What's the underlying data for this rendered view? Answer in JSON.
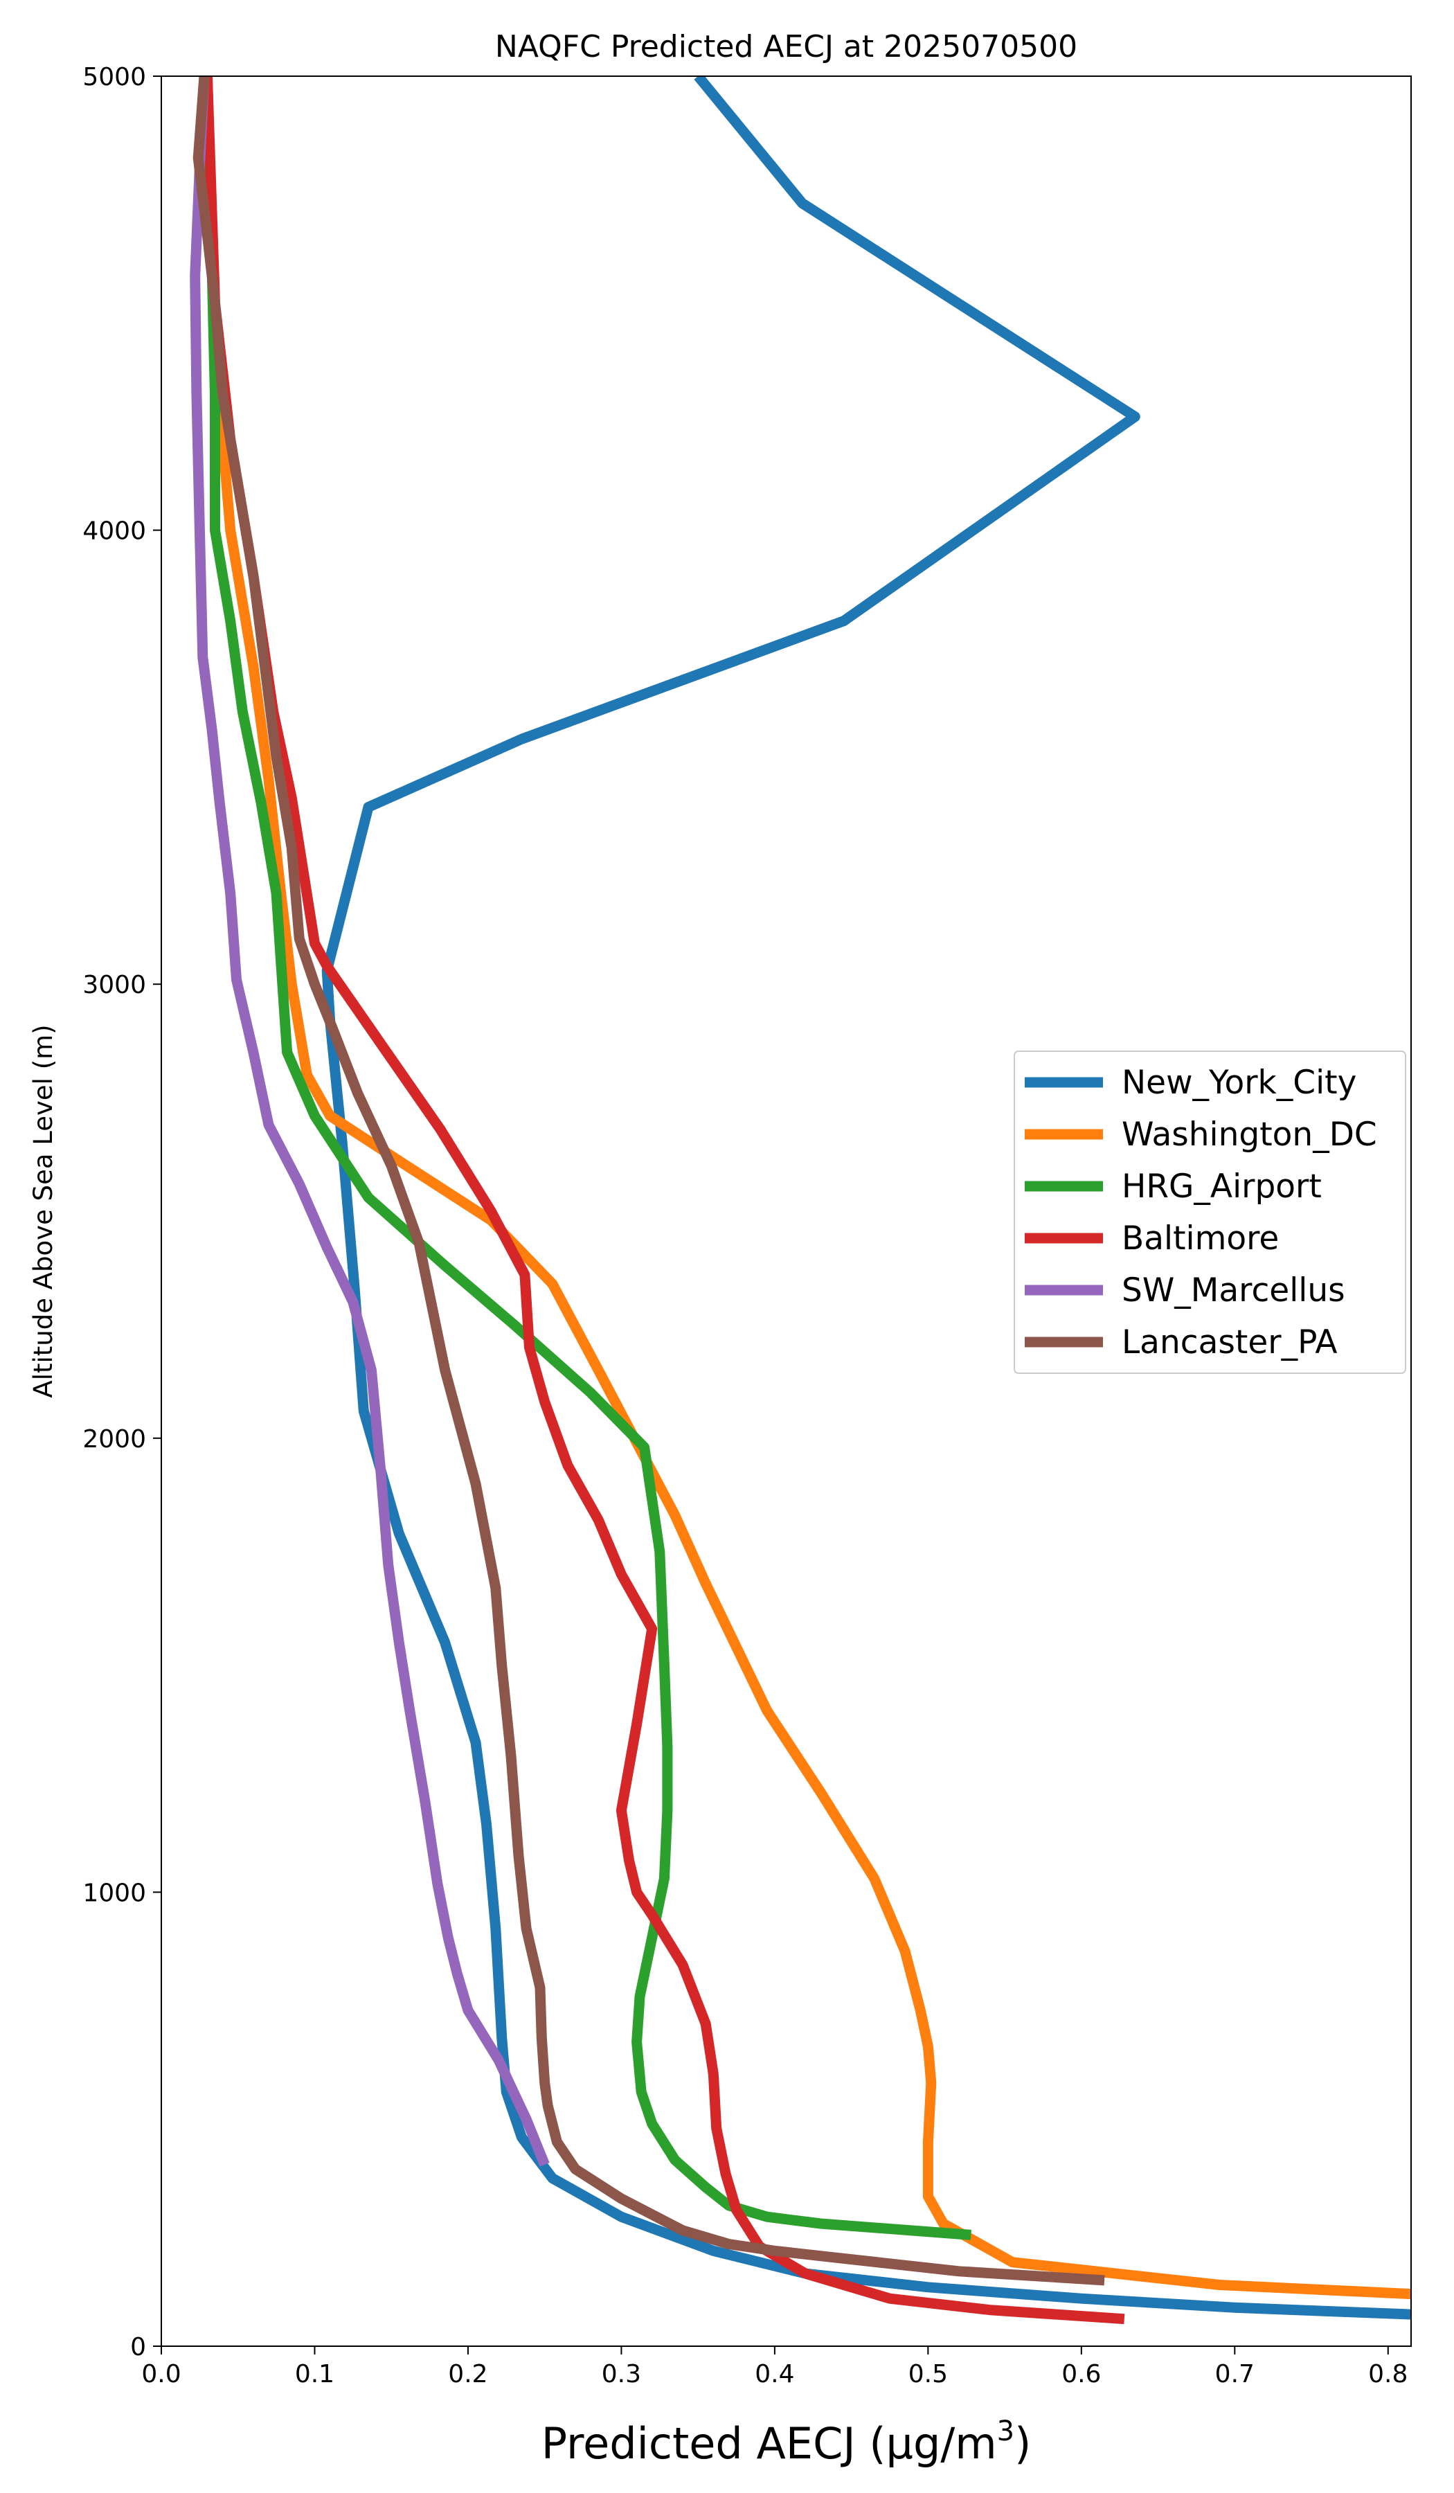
{
  "chart_data": {
    "type": "line",
    "title": "NAQFC Predicted AECJ at 2025070500",
    "xlabel": "Predicted AECJ (μg/m",
    "xlabel_sup": "3",
    "xlabel_close": ")",
    "ylabel": "Altitude Above Sea Level (m)",
    "xlim": [
      0,
      0.815
    ],
    "ylim": [
      0,
      5000
    ],
    "xticks": [
      0.0,
      0.1,
      0.2,
      0.3,
      0.4,
      0.5,
      0.6,
      0.7,
      0.8
    ],
    "xtick_labels": [
      "0.0",
      "0.1",
      "0.2",
      "0.3",
      "0.4",
      "0.5",
      "0.6",
      "0.7",
      "0.8"
    ],
    "yticks": [
      0,
      1000,
      2000,
      3000,
      4000,
      5000
    ],
    "ytick_labels": [
      "0",
      "1000",
      "2000",
      "3000",
      "4000",
      "5000"
    ],
    "grid": false,
    "legend_position": "center-right",
    "series": [
      {
        "name": "New_York_City",
        "color": "#1f77b4",
        "points": [
          [
            0.815,
            70
          ],
          [
            0.7,
            85
          ],
          [
            0.6,
            105
          ],
          [
            0.5,
            130
          ],
          [
            0.42,
            160
          ],
          [
            0.36,
            210
          ],
          [
            0.3,
            285
          ],
          [
            0.255,
            370
          ],
          [
            0.235,
            460
          ],
          [
            0.225,
            560
          ],
          [
            0.222,
            680
          ],
          [
            0.218,
            920
          ],
          [
            0.212,
            1150
          ],
          [
            0.205,
            1330
          ],
          [
            0.185,
            1550
          ],
          [
            0.155,
            1790
          ],
          [
            0.132,
            2060
          ],
          [
            0.126,
            2330
          ],
          [
            0.118,
            2650
          ],
          [
            0.11,
            2920
          ],
          [
            0.108,
            3030
          ],
          [
            0.135,
            3390
          ],
          [
            0.235,
            3540
          ],
          [
            0.445,
            3800
          ],
          [
            0.635,
            4250
          ],
          [
            0.418,
            4720
          ],
          [
            0.35,
            5000
          ]
        ]
      },
      {
        "name": "Washington_DC",
        "color": "#ff7f0e",
        "points": [
          [
            0.815,
            115
          ],
          [
            0.69,
            135
          ],
          [
            0.555,
            185
          ],
          [
            0.51,
            270
          ],
          [
            0.5,
            330
          ],
          [
            0.5,
            450
          ],
          [
            0.502,
            580
          ],
          [
            0.5,
            660
          ],
          [
            0.495,
            740
          ],
          [
            0.485,
            870
          ],
          [
            0.465,
            1030
          ],
          [
            0.43,
            1220
          ],
          [
            0.395,
            1400
          ],
          [
            0.375,
            1540
          ],
          [
            0.355,
            1680
          ],
          [
            0.335,
            1830
          ],
          [
            0.31,
            1990
          ],
          [
            0.285,
            2150
          ],
          [
            0.255,
            2340
          ],
          [
            0.215,
            2480
          ],
          [
            0.16,
            2600
          ],
          [
            0.11,
            2710
          ],
          [
            0.095,
            2800
          ],
          [
            0.085,
            3000
          ],
          [
            0.078,
            3200
          ],
          [
            0.07,
            3450
          ],
          [
            0.06,
            3700
          ],
          [
            0.045,
            4000
          ],
          [
            0.035,
            4400
          ],
          [
            0.03,
            5000
          ]
        ]
      },
      {
        "name": "HRG_Airport",
        "color": "#2ca02c",
        "points": [
          [
            0.528,
            245
          ],
          [
            0.43,
            270
          ],
          [
            0.395,
            285
          ],
          [
            0.37,
            310
          ],
          [
            0.355,
            350
          ],
          [
            0.335,
            410
          ],
          [
            0.32,
            490
          ],
          [
            0.313,
            560
          ],
          [
            0.31,
            670
          ],
          [
            0.312,
            770
          ],
          [
            0.32,
            900
          ],
          [
            0.328,
            1030
          ],
          [
            0.33,
            1180
          ],
          [
            0.33,
            1320
          ],
          [
            0.328,
            1500
          ],
          [
            0.325,
            1750
          ],
          [
            0.315,
            1980
          ],
          [
            0.28,
            2100
          ],
          [
            0.23,
            2250
          ],
          [
            0.185,
            2380
          ],
          [
            0.135,
            2530
          ],
          [
            0.1,
            2710
          ],
          [
            0.082,
            2850
          ],
          [
            0.078,
            3050
          ],
          [
            0.075,
            3200
          ],
          [
            0.065,
            3400
          ],
          [
            0.053,
            3600
          ],
          [
            0.045,
            3800
          ],
          [
            0.035,
            4000
          ],
          [
            0.035,
            4300
          ],
          [
            0.03,
            5000
          ]
        ]
      },
      {
        "name": "Baltimore",
        "color": "#d62728",
        "points": [
          [
            0.628,
            60
          ],
          [
            0.54,
            80
          ],
          [
            0.475,
            105
          ],
          [
            0.42,
            160
          ],
          [
            0.39,
            220
          ],
          [
            0.375,
            300
          ],
          [
            0.368,
            380
          ],
          [
            0.362,
            480
          ],
          [
            0.36,
            600
          ],
          [
            0.355,
            710
          ],
          [
            0.34,
            840
          ],
          [
            0.32,
            950
          ],
          [
            0.31,
            1000
          ],
          [
            0.305,
            1070
          ],
          [
            0.3,
            1180
          ],
          [
            0.31,
            1370
          ],
          [
            0.32,
            1580
          ],
          [
            0.3,
            1700
          ],
          [
            0.285,
            1820
          ],
          [
            0.265,
            1940
          ],
          [
            0.25,
            2080
          ],
          [
            0.24,
            2200
          ],
          [
            0.237,
            2360
          ],
          [
            0.215,
            2500
          ],
          [
            0.182,
            2680
          ],
          [
            0.145,
            2860
          ],
          [
            0.108,
            3040
          ],
          [
            0.1,
            3090
          ],
          [
            0.085,
            3410
          ],
          [
            0.073,
            3600
          ],
          [
            0.06,
            3900
          ],
          [
            0.045,
            4200
          ],
          [
            0.035,
            4500
          ],
          [
            0.03,
            5000
          ]
        ]
      },
      {
        "name": "SW_Marcellus",
        "color": "#9467bd",
        "points": [
          [
            0.25,
            400
          ],
          [
            0.238,
            500
          ],
          [
            0.22,
            630
          ],
          [
            0.2,
            740
          ],
          [
            0.193,
            820
          ],
          [
            0.187,
            900
          ],
          [
            0.18,
            1020
          ],
          [
            0.172,
            1200
          ],
          [
            0.162,
            1400
          ],
          [
            0.155,
            1550
          ],
          [
            0.148,
            1720
          ],
          [
            0.143,
            1930
          ],
          [
            0.137,
            2150
          ],
          [
            0.125,
            2300
          ],
          [
            0.108,
            2420
          ],
          [
            0.09,
            2560
          ],
          [
            0.07,
            2690
          ],
          [
            0.06,
            2850
          ],
          [
            0.049,
            3010
          ],
          [
            0.045,
            3200
          ],
          [
            0.038,
            3400
          ],
          [
            0.033,
            3560
          ],
          [
            0.027,
            3720
          ],
          [
            0.025,
            4000
          ],
          [
            0.023,
            4300
          ],
          [
            0.022,
            4560
          ],
          [
            0.025,
            4800
          ],
          [
            0.028,
            5000
          ]
        ]
      },
      {
        "name": "Lancaster_PA",
        "color": "#8c564b",
        "points": [
          [
            0.615,
            145
          ],
          [
            0.52,
            165
          ],
          [
            0.44,
            195
          ],
          [
            0.4,
            210
          ],
          [
            0.37,
            225
          ],
          [
            0.34,
            255
          ],
          [
            0.3,
            325
          ],
          [
            0.27,
            390
          ],
          [
            0.258,
            450
          ],
          [
            0.252,
            530
          ],
          [
            0.25,
            580
          ],
          [
            0.248,
            680
          ],
          [
            0.247,
            790
          ],
          [
            0.238,
            920
          ],
          [
            0.233,
            1080
          ],
          [
            0.228,
            1300
          ],
          [
            0.222,
            1500
          ],
          [
            0.218,
            1670
          ],
          [
            0.205,
            1900
          ],
          [
            0.185,
            2150
          ],
          [
            0.168,
            2430
          ],
          [
            0.15,
            2600
          ],
          [
            0.128,
            2760
          ],
          [
            0.112,
            2900
          ],
          [
            0.1,
            3000
          ],
          [
            0.09,
            3100
          ],
          [
            0.085,
            3300
          ],
          [
            0.075,
            3500
          ],
          [
            0.06,
            3900
          ],
          [
            0.05,
            4100
          ],
          [
            0.04,
            4300
          ],
          [
            0.035,
            4500
          ],
          [
            0.03,
            4650
          ],
          [
            0.024,
            4820
          ],
          [
            0.028,
            5000
          ]
        ]
      }
    ]
  }
}
